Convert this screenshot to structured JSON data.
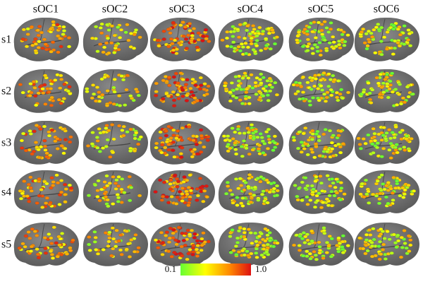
{
  "columns": [
    "sOC1",
    "sOC2",
    "sOC3",
    "sOC4",
    "sOC5",
    "sOC6"
  ],
  "rows": [
    "s1",
    "s2",
    "s3",
    "s4",
    "s5"
  ],
  "colorbar": {
    "min_label": "0.1",
    "max_label": "1.0"
  }
}
